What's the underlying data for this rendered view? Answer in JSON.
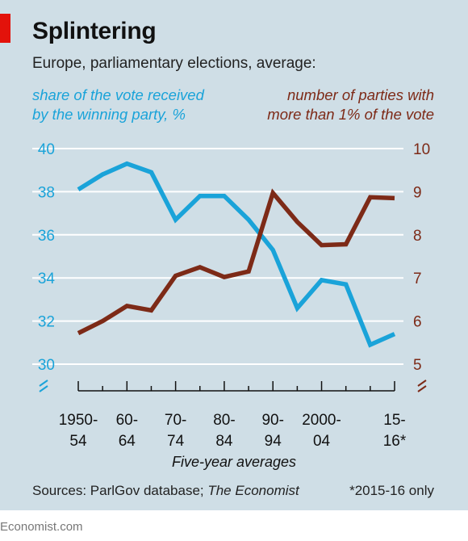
{
  "header": {
    "title": "Splintering",
    "subtitle": "Europe, parliamentary elections, average:"
  },
  "legend": {
    "left_line1": "share of the vote received",
    "left_line2": "by the winning party, %",
    "right_line1": "number of parties with",
    "right_line2": "more than 1% of the vote"
  },
  "footer": {
    "source_prefix": "Sources: ParlGov database; ",
    "source_italic": "The Economist",
    "note": "*2015-16 only",
    "brand": "Economist.com"
  },
  "colors": {
    "vote_share": "#1aa3d9",
    "num_parties": "#7d2a17",
    "background": "#cfdee6",
    "accent_tag": "#e3120b"
  },
  "chart_data": {
    "type": "line",
    "xlabel": "Five-year averages",
    "x": [
      1950,
      1955,
      1960,
      1965,
      1970,
      1975,
      1980,
      1985,
      1990,
      1995,
      2000,
      2005,
      2010,
      2015
    ],
    "x_tick_labels": [
      {
        "x": 1950,
        "line1": "1950-",
        "line2": "54"
      },
      {
        "x": 1960,
        "line1": "60-",
        "line2": "64"
      },
      {
        "x": 1970,
        "line1": "70-",
        "line2": "74"
      },
      {
        "x": 1980,
        "line1": "80-",
        "line2": "84"
      },
      {
        "x": 1990,
        "line1": "90-",
        "line2": "94"
      },
      {
        "x": 2000,
        "line1": "2000-",
        "line2": "04"
      },
      {
        "x": 2015,
        "line1": "15-",
        "line2": "16*"
      }
    ],
    "xlim": [
      1950,
      2015
    ],
    "grid": true,
    "axes": {
      "left": {
        "ylim": [
          30,
          40
        ],
        "ticks": [
          30,
          32,
          34,
          36,
          38,
          40
        ]
      },
      "right": {
        "ylim": [
          5,
          10
        ],
        "ticks": [
          5,
          6,
          7,
          8,
          9,
          10
        ]
      }
    },
    "series": [
      {
        "name": "share of the vote received by the winning party, %",
        "axis": "left",
        "values": [
          38.1,
          38.8,
          39.3,
          38.9,
          36.7,
          37.8,
          37.8,
          36.7,
          35.3,
          32.6,
          33.9,
          33.7,
          30.9,
          31.4
        ]
      },
      {
        "name": "number of parties with more than 1% of the vote",
        "axis": "right",
        "values": [
          5.72,
          6.0,
          6.35,
          6.25,
          7.05,
          7.25,
          7.02,
          7.15,
          8.97,
          8.3,
          7.76,
          7.78,
          8.87,
          8.85
        ]
      }
    ]
  }
}
